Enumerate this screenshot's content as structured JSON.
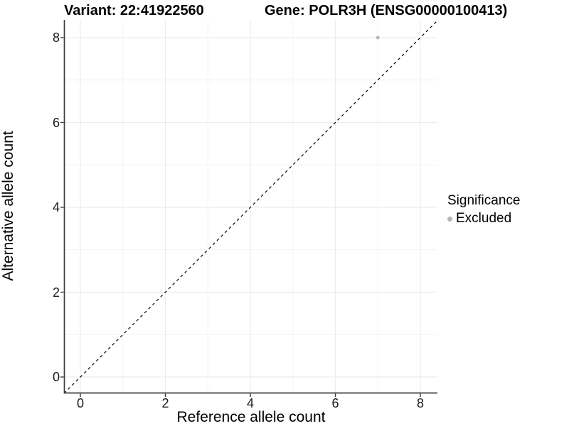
{
  "header": {
    "variant_title": "Variant: 22:41922560",
    "gene_title": "Gene: POLR3H (ENSG00000100413)"
  },
  "chart_data": {
    "type": "scatter",
    "xlabel": "Reference allele count",
    "ylabel": "Alternative allele count",
    "xlim": [
      -0.38,
      8.43
    ],
    "ylim": [
      -0.38,
      8.43
    ],
    "xticks": [
      0,
      2,
      4,
      6,
      8
    ],
    "yticks": [
      0,
      2,
      4,
      6,
      8
    ],
    "xticks_minor": [
      1,
      3,
      5,
      7
    ],
    "yticks_minor": [
      1,
      3,
      5,
      7
    ],
    "grid": true,
    "identity_line": {
      "style": "dashed",
      "color": "#000000"
    },
    "series": [
      {
        "name": "Excluded",
        "color": "#b4b4b4",
        "points": [
          {
            "x": 7,
            "y": 8
          }
        ]
      }
    ],
    "legend": {
      "title": "Significance",
      "position": "right"
    }
  },
  "colors": {
    "grid_major": "#ececec",
    "grid_minor": "#f4f4f4",
    "axis_line": "#3c3c3c",
    "panel_bg": "#ffffff"
  }
}
